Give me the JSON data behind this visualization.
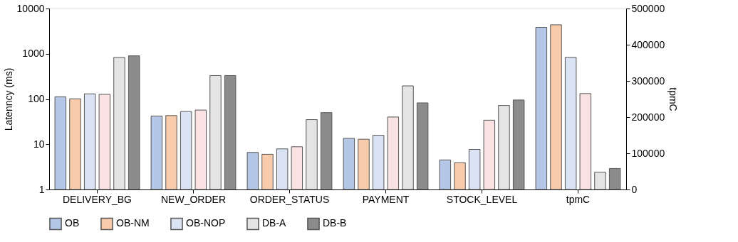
{
  "chart_data": {
    "type": "bar",
    "ylabel": "Latenncy (ms)",
    "y2label": "tpmC",
    "log": "y",
    "ylim": [
      1,
      10000
    ],
    "yticks": [
      1,
      10,
      100,
      1000,
      10000
    ],
    "y2lim": [
      0,
      500000
    ],
    "y2ticks": [
      0,
      100000,
      200000,
      300000,
      400000,
      500000
    ],
    "grid": false,
    "legend": "bottom",
    "categories": [
      "DELIVERY_BG",
      "NEW_ORDER",
      "ORDER_STATUS",
      "PAYMENT",
      "STOCK_LEVEL",
      "tpmC"
    ],
    "series": [
      {
        "name": "OB",
        "color": "#b4c7e7",
        "values": [
          112,
          42,
          6.6,
          13.5,
          4.5,
          null
        ]
      },
      {
        "name": "OB-NM",
        "color": "#f8cbad",
        "values": [
          101,
          43,
          6.0,
          12.9,
          3.9,
          null
        ]
      },
      {
        "name": "OB-NOP",
        "color": "#dae3f3",
        "values": [
          130,
          53,
          7.9,
          15.8,
          7.7,
          null
        ]
      },
      {
        "color": "#fbe2e2",
        "values": [
          127,
          57,
          8.8,
          40,
          34,
          null
        ]
      },
      {
        "name": "DB-A",
        "color": "#e4e4e4",
        "values": [
          830,
          330,
          35,
          195,
          72,
          null
        ]
      },
      {
        "name": "DB-B",
        "color": "#8c8c8c",
        "values": [
          900,
          330,
          50,
          82,
          95,
          null
        ]
      },
      {
        "color": "#b4c7e7",
        "axis": "y2",
        "values": [
          null,
          null,
          null,
          null,
          null,
          448000
        ]
      },
      {
        "color": "#f8cbad",
        "axis": "y2",
        "values": [
          null,
          null,
          null,
          null,
          null,
          455000
        ]
      },
      {
        "color": "#dae3f3",
        "axis": "y2",
        "values": [
          null,
          null,
          null,
          null,
          null,
          365000
        ]
      },
      {
        "color": "#fbe2e2",
        "axis": "y2",
        "values": [
          null,
          null,
          null,
          null,
          null,
          265000
        ]
      },
      {
        "color": "#e4e4e4",
        "axis": "y2",
        "values": [
          null,
          null,
          null,
          null,
          null,
          48000
        ]
      },
      {
        "color": "#8c8c8c",
        "axis": "y2",
        "values": [
          null,
          null,
          null,
          null,
          null,
          58000
        ]
      }
    ]
  }
}
